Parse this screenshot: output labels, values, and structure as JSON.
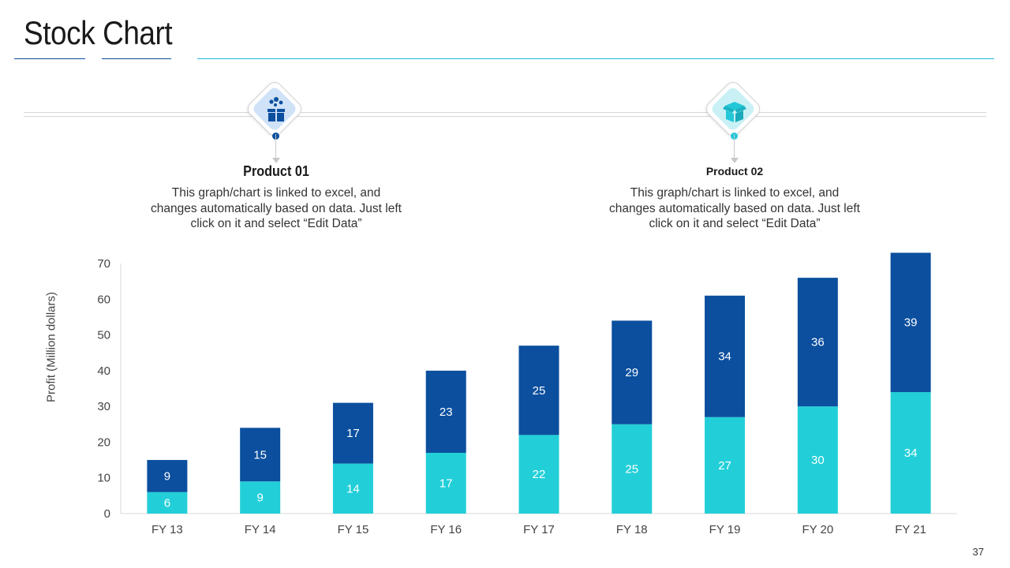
{
  "slide": {
    "title": "Stock Chart",
    "page_number": "37"
  },
  "products": [
    {
      "title": "Product 01",
      "description": "This graph/chart is linked to excel, and changes automatically based on data. Just left click on it and select “Edit Data”",
      "icon": "gifts-box-icon",
      "color": "#0a4f9c"
    },
    {
      "title": "Product 02",
      "description": "This graph/chart is linked to excel, and changes automatically based on data. Just left click on it and select “Edit Data”",
      "icon": "open-box-icon",
      "color": "#22c7d8"
    }
  ],
  "colors": {
    "product01": "#0b4f9e",
    "product02": "#22cfd8",
    "accent_line": "#22b8d6"
  },
  "chart_data": {
    "type": "bar",
    "stacked": true,
    "categories": [
      "FY 13",
      "FY 14",
      "FY 15",
      "FY 16",
      "FY 17",
      "FY 18",
      "FY 19",
      "FY 20",
      "FY 21"
    ],
    "series": [
      {
        "name": "Product 02",
        "values": [
          6,
          9,
          14,
          17,
          22,
          25,
          27,
          30,
          34
        ],
        "color": "#22cfd8"
      },
      {
        "name": "Product 01",
        "values": [
          9,
          15,
          17,
          23,
          25,
          29,
          34,
          36,
          39
        ],
        "color": "#0b4f9e"
      }
    ],
    "ylabel": "Profit  (Million dollars)",
    "xlabel": "",
    "ylim": [
      0,
      70
    ],
    "yticks": [
      0,
      10,
      20,
      30,
      40,
      50,
      60,
      70
    ],
    "grid": false,
    "data_labels": true
  }
}
